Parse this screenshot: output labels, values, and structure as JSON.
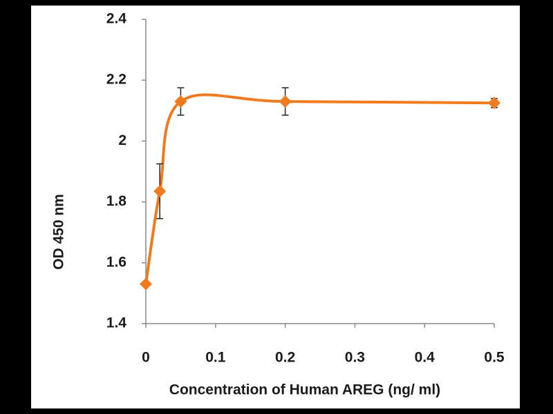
{
  "chart_data": {
    "type": "line",
    "x_label": "Concentration of Human AREG (ng/ ml)",
    "y_label": "OD  450 nm",
    "series": [
      {
        "color": "#f07a1e",
        "x": [
          0,
          0.02,
          0.05,
          0.2,
          0.5
        ],
        "values": [
          1.53,
          1.835,
          2.13,
          2.13,
          2.125
        ],
        "errors": [
          0,
          0.09,
          0.045,
          0.045,
          0.015
        ]
      }
    ],
    "xlim": [
      0,
      0.5
    ],
    "xticks": [
      0,
      0.1,
      0.2,
      0.3,
      0.4,
      0.5
    ],
    "ylim": [
      1.4,
      2.4
    ],
    "yticks": [
      1.4,
      1.6,
      1.8,
      2,
      2.2,
      2.4
    ],
    "smooth": true
  }
}
